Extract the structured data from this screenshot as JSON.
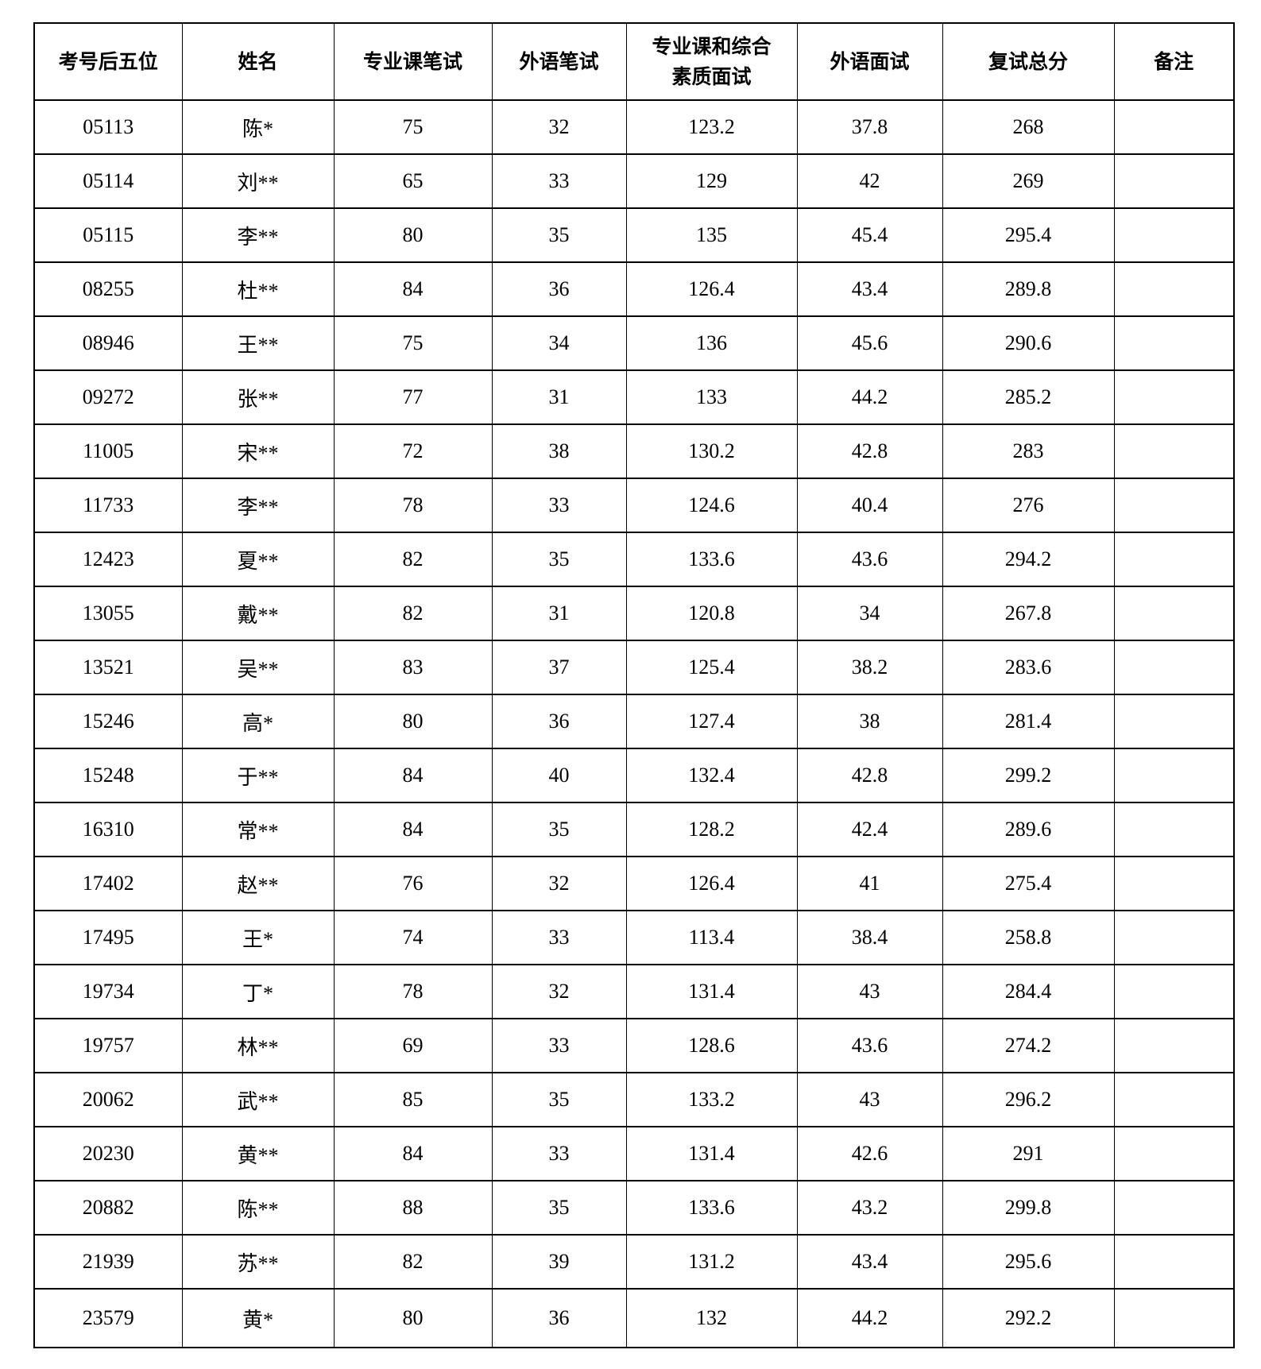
{
  "headers": [
    "考号后五位",
    "姓名",
    "专业课笔试",
    "外语笔试",
    "专业课和综合素质面试",
    "外语面试",
    "复试总分",
    "备注"
  ],
  "rows": [
    [
      "05113",
      "陈*",
      "75",
      "32",
      "123.2",
      "37.8",
      "268",
      ""
    ],
    [
      "05114",
      "刘**",
      "65",
      "33",
      "129",
      "42",
      "269",
      ""
    ],
    [
      "05115",
      "李**",
      "80",
      "35",
      "135",
      "45.4",
      "295.4",
      ""
    ],
    [
      "08255",
      "杜**",
      "84",
      "36",
      "126.4",
      "43.4",
      "289.8",
      ""
    ],
    [
      "08946",
      "王**",
      "75",
      "34",
      "136",
      "45.6",
      "290.6",
      ""
    ],
    [
      "09272",
      "张**",
      "77",
      "31",
      "133",
      "44.2",
      "285.2",
      ""
    ],
    [
      "11005",
      "宋**",
      "72",
      "38",
      "130.2",
      "42.8",
      "283",
      ""
    ],
    [
      "11733",
      "李**",
      "78",
      "33",
      "124.6",
      "40.4",
      "276",
      ""
    ],
    [
      "12423",
      "夏**",
      "82",
      "35",
      "133.6",
      "43.6",
      "294.2",
      ""
    ],
    [
      "13055",
      "戴**",
      "82",
      "31",
      "120.8",
      "34",
      "267.8",
      ""
    ],
    [
      "13521",
      "吴**",
      "83",
      "37",
      "125.4",
      "38.2",
      "283.6",
      ""
    ],
    [
      "15246",
      "高*",
      "80",
      "36",
      "127.4",
      "38",
      "281.4",
      ""
    ],
    [
      "15248",
      "于**",
      "84",
      "40",
      "132.4",
      "42.8",
      "299.2",
      ""
    ],
    [
      "16310",
      "常**",
      "84",
      "35",
      "128.2",
      "42.4",
      "289.6",
      ""
    ],
    [
      "17402",
      "赵**",
      "76",
      "32",
      "126.4",
      "41",
      "275.4",
      ""
    ],
    [
      "17495",
      "王*",
      "74",
      "33",
      "113.4",
      "38.4",
      "258.8",
      ""
    ],
    [
      "19734",
      "丁*",
      "78",
      "32",
      "131.4",
      "43",
      "284.4",
      ""
    ],
    [
      "19757",
      "林**",
      "69",
      "33",
      "128.6",
      "43.6",
      "274.2",
      ""
    ],
    [
      "20062",
      "武**",
      "85",
      "35",
      "133.2",
      "43",
      "296.2",
      ""
    ],
    [
      "20230",
      "黄**",
      "84",
      "33",
      "131.4",
      "42.6",
      "291",
      ""
    ],
    [
      "20882",
      "陈**",
      "88",
      "35",
      "133.6",
      "43.2",
      "299.8",
      ""
    ],
    [
      "21939",
      "苏**",
      "82",
      "39",
      "131.2",
      "43.4",
      "295.6",
      ""
    ],
    [
      "23579",
      "黄*",
      "80",
      "36",
      "132",
      "44.2",
      "292.2",
      ""
    ]
  ]
}
